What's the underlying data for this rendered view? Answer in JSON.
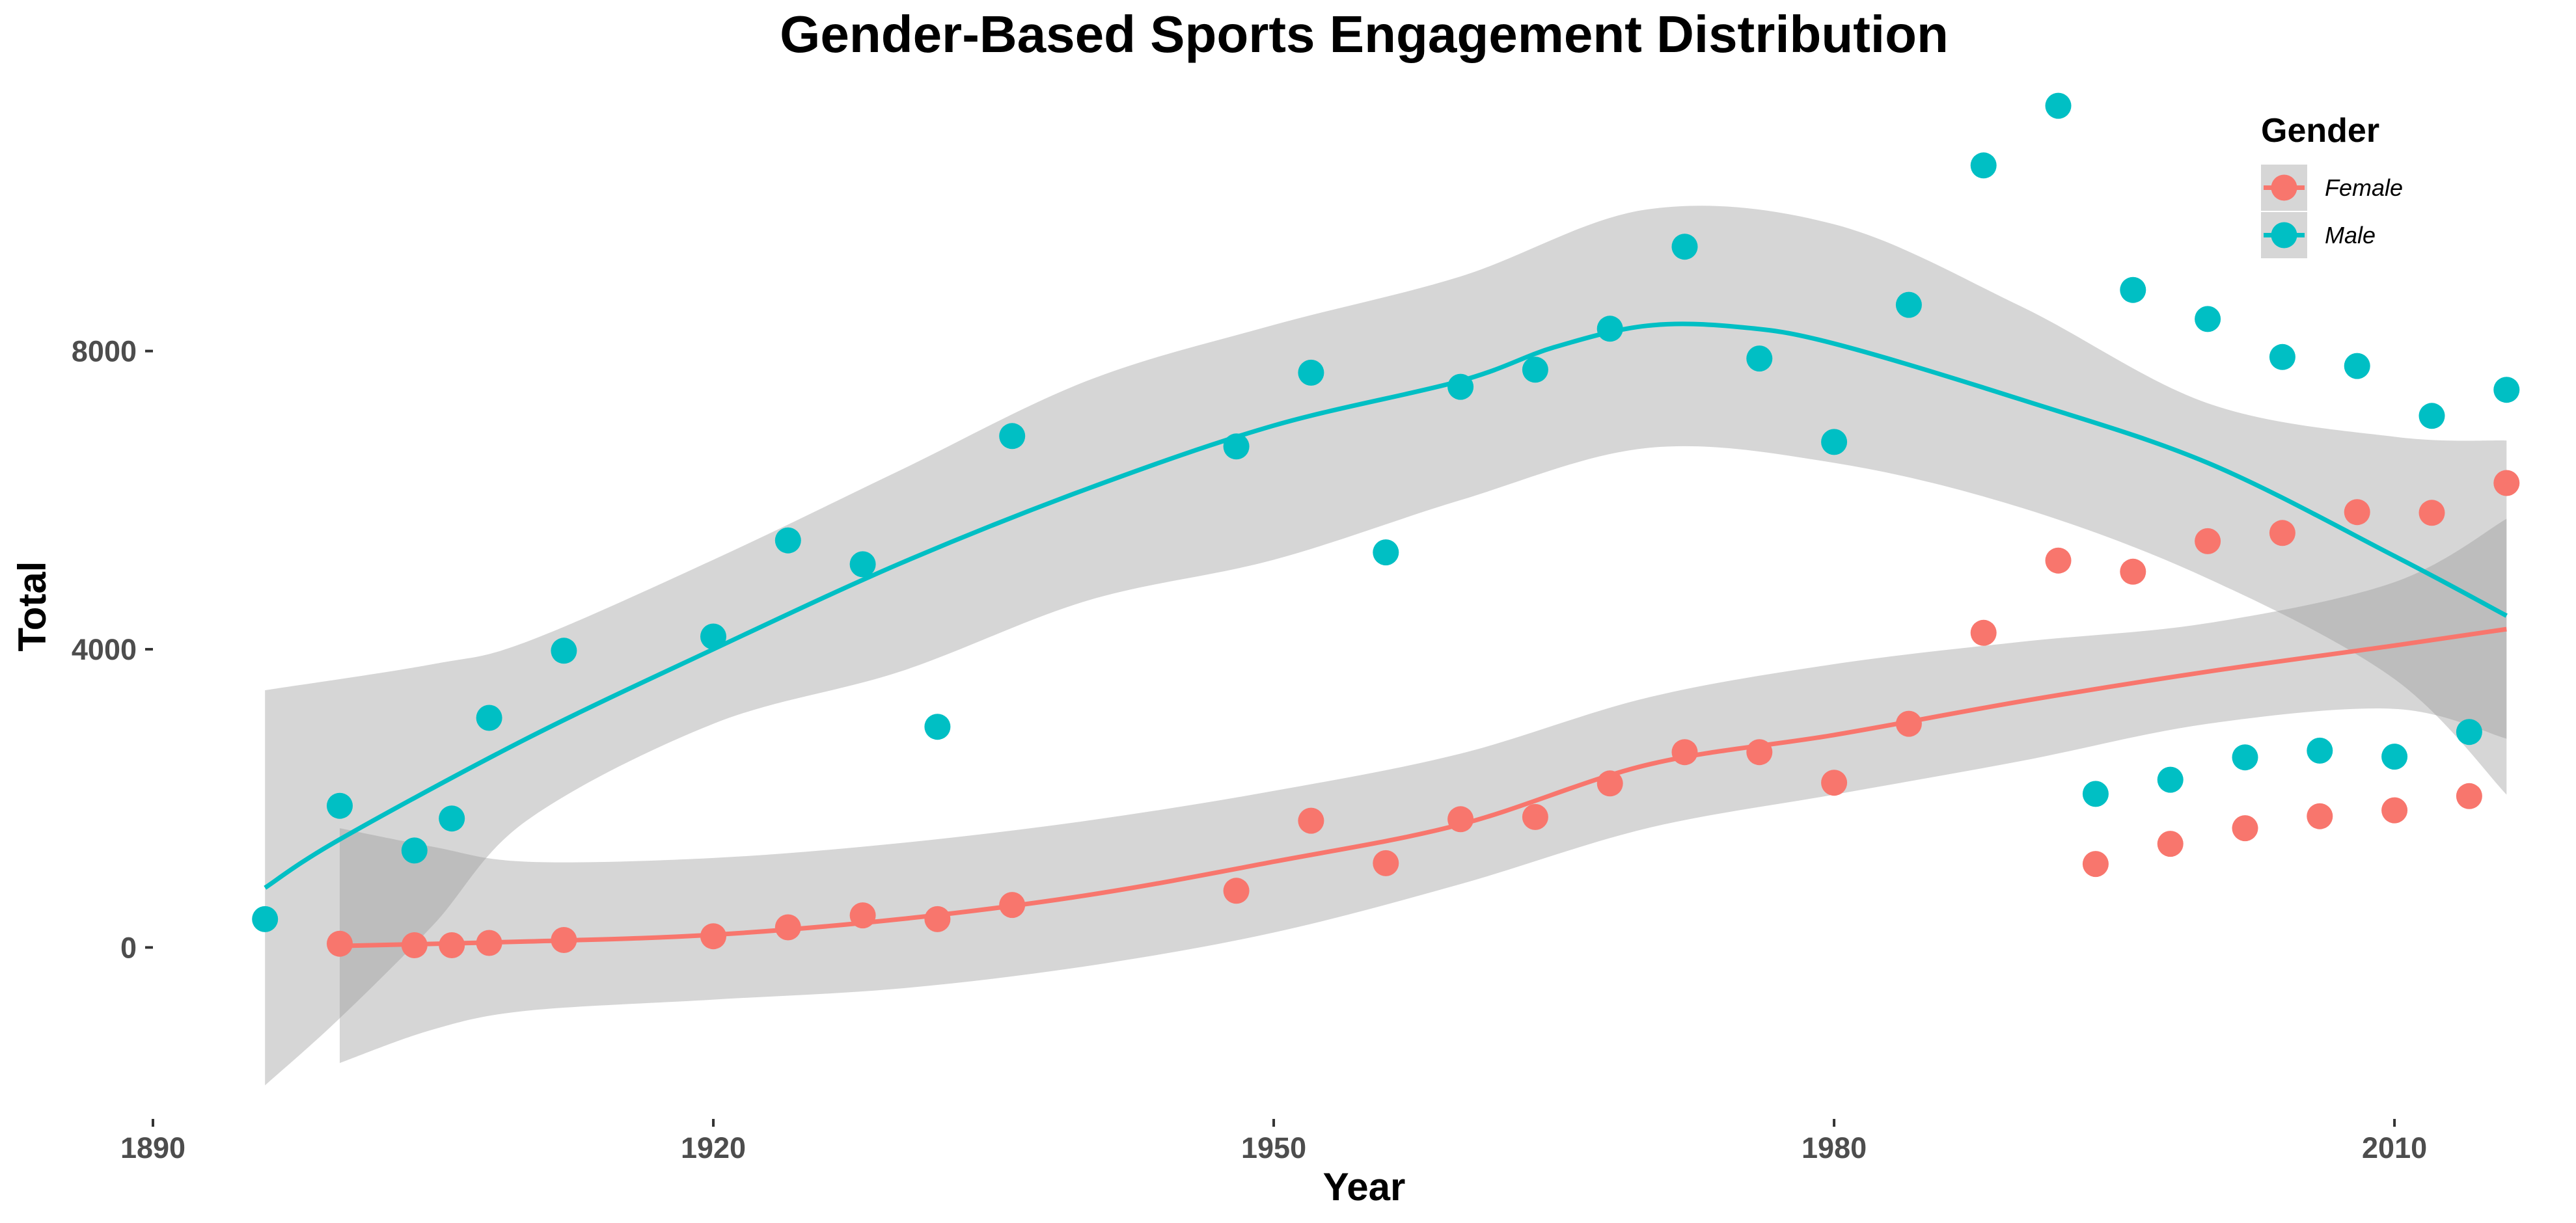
{
  "chart_data": {
    "type": "scatter",
    "title": "Gender-Based Sports Engagement Distribution",
    "xlabel": "Year",
    "ylabel": "Total",
    "xlim": [
      1890,
      2017
    ],
    "ylim": [
      -2300,
      11400
    ],
    "x_ticks": [
      1890,
      1920,
      1950,
      1980,
      2010
    ],
    "y_ticks": [
      0,
      4000,
      8000
    ],
    "grid": false,
    "legend": {
      "title": "Gender",
      "placement": "top-right"
    },
    "series": [
      {
        "name": "Female",
        "color": "#F8766D",
        "points": [
          [
            1900,
            50
          ],
          [
            1904,
            30
          ],
          [
            1906,
            30
          ],
          [
            1908,
            60
          ],
          [
            1912,
            100
          ],
          [
            1920,
            150
          ],
          [
            1924,
            270
          ],
          [
            1928,
            430
          ],
          [
            1932,
            380
          ],
          [
            1936,
            570
          ],
          [
            1948,
            760
          ],
          [
            1952,
            1700
          ],
          [
            1956,
            1130
          ],
          [
            1960,
            1720
          ],
          [
            1964,
            1750
          ],
          [
            1968,
            2200
          ],
          [
            1972,
            2620
          ],
          [
            1976,
            2620
          ],
          [
            1980,
            2210
          ],
          [
            1984,
            3000
          ],
          [
            1988,
            4220
          ],
          [
            1992,
            5190
          ],
          [
            1994,
            1120
          ],
          [
            1996,
            5040
          ],
          [
            1998,
            1390
          ],
          [
            2000,
            5450
          ],
          [
            2002,
            1600
          ],
          [
            2004,
            5560
          ],
          [
            2006,
            1760
          ],
          [
            2008,
            5840
          ],
          [
            2010,
            1840
          ],
          [
            2012,
            5830
          ],
          [
            2014,
            2030
          ],
          [
            2016,
            6230
          ]
        ],
        "trend": [
          [
            1900,
            20
          ],
          [
            1910,
            80
          ],
          [
            1920,
            170
          ],
          [
            1930,
            380
          ],
          [
            1940,
            700
          ],
          [
            1950,
            1150
          ],
          [
            1960,
            1650
          ],
          [
            1970,
            2450
          ],
          [
            1980,
            2850
          ],
          [
            1990,
            3300
          ],
          [
            2000,
            3700
          ],
          [
            2010,
            4050
          ],
          [
            2016,
            4270
          ]
        ],
        "band_upper": [
          [
            1900,
            1600
          ],
          [
            1905,
            1350
          ],
          [
            1910,
            1150
          ],
          [
            1920,
            1200
          ],
          [
            1930,
            1400
          ],
          [
            1940,
            1700
          ],
          [
            1950,
            2100
          ],
          [
            1960,
            2600
          ],
          [
            1970,
            3350
          ],
          [
            1980,
            3800
          ],
          [
            1990,
            4100
          ],
          [
            2000,
            4350
          ],
          [
            2010,
            4900
          ],
          [
            2016,
            5750
          ]
        ],
        "band_lower": [
          [
            1900,
            -1550
          ],
          [
            1905,
            -1100
          ],
          [
            1910,
            -850
          ],
          [
            1920,
            -700
          ],
          [
            1930,
            -550
          ],
          [
            1940,
            -250
          ],
          [
            1950,
            200
          ],
          [
            1960,
            850
          ],
          [
            1970,
            1600
          ],
          [
            1980,
            2050
          ],
          [
            1990,
            2500
          ],
          [
            2000,
            3000
          ],
          [
            2010,
            3200
          ],
          [
            2016,
            2800
          ]
        ]
      },
      {
        "name": "Male",
        "color": "#00BFC4",
        "points": [
          [
            1896,
            380
          ],
          [
            1900,
            1900
          ],
          [
            1904,
            1300
          ],
          [
            1906,
            1730
          ],
          [
            1908,
            3080
          ],
          [
            1912,
            3980
          ],
          [
            1920,
            4170
          ],
          [
            1924,
            5460
          ],
          [
            1928,
            5140
          ],
          [
            1932,
            2960
          ],
          [
            1936,
            6860
          ],
          [
            1948,
            6720
          ],
          [
            1952,
            7710
          ],
          [
            1956,
            5300
          ],
          [
            1960,
            7520
          ],
          [
            1964,
            7750
          ],
          [
            1968,
            8300
          ],
          [
            1972,
            9400
          ],
          [
            1976,
            7900
          ],
          [
            1980,
            6780
          ],
          [
            1984,
            8620
          ],
          [
            1988,
            10490
          ],
          [
            1992,
            11290
          ],
          [
            1994,
            2060
          ],
          [
            1996,
            8820
          ],
          [
            1998,
            2250
          ],
          [
            2000,
            8430
          ],
          [
            2002,
            2550
          ],
          [
            2004,
            7920
          ],
          [
            2006,
            2640
          ],
          [
            2008,
            7800
          ],
          [
            2010,
            2560
          ],
          [
            2012,
            7130
          ],
          [
            2014,
            2890
          ],
          [
            2016,
            7480
          ]
        ],
        "trend": [
          [
            1896,
            800
          ],
          [
            1900,
            1450
          ],
          [
            1910,
            2800
          ],
          [
            1920,
            4000
          ],
          [
            1930,
            5150
          ],
          [
            1940,
            6150
          ],
          [
            1950,
            7000
          ],
          [
            1960,
            7600
          ],
          [
            1965,
            8050
          ],
          [
            1970,
            8340
          ],
          [
            1975,
            8320
          ],
          [
            1980,
            8100
          ],
          [
            1990,
            7350
          ],
          [
            2000,
            6500
          ],
          [
            2010,
            5250
          ],
          [
            2016,
            4450
          ]
        ],
        "band_upper": [
          [
            1896,
            3450
          ],
          [
            1905,
            3800
          ],
          [
            1910,
            4100
          ],
          [
            1920,
            5200
          ],
          [
            1930,
            6400
          ],
          [
            1940,
            7600
          ],
          [
            1950,
            8350
          ],
          [
            1960,
            9000
          ],
          [
            1970,
            9900
          ],
          [
            1980,
            9700
          ],
          [
            1990,
            8600
          ],
          [
            2000,
            7300
          ],
          [
            2010,
            6850
          ],
          [
            2016,
            6800
          ]
        ],
        "band_lower": [
          [
            1896,
            -1850
          ],
          [
            1900,
            -950
          ],
          [
            1905,
            300
          ],
          [
            1910,
            1700
          ],
          [
            1920,
            3000
          ],
          [
            1930,
            3700
          ],
          [
            1940,
            4650
          ],
          [
            1950,
            5200
          ],
          [
            1960,
            6000
          ],
          [
            1970,
            6700
          ],
          [
            1980,
            6500
          ],
          [
            1990,
            5900
          ],
          [
            2000,
            4950
          ],
          [
            2010,
            3600
          ],
          [
            2016,
            2050
          ]
        ]
      }
    ]
  }
}
